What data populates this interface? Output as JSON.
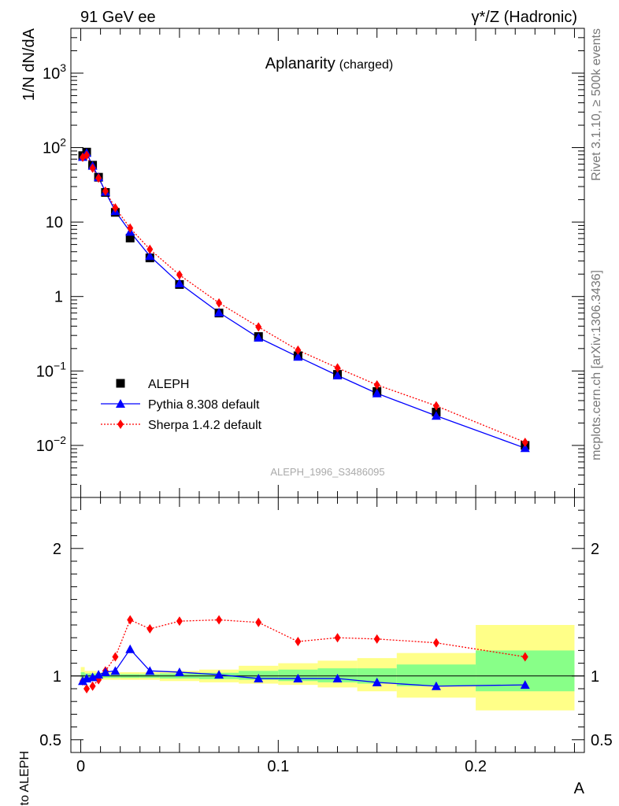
{
  "header": {
    "left": "91 GeV ee",
    "right": "γ*/Z (Hadronic)"
  },
  "side": {
    "rivet": "Rivet 3.1.10, ≥ 500k events",
    "mcplots": "mcplots.cern.ch [arXiv:1306.3436]"
  },
  "colors": {
    "data": "#000000",
    "pythia": "#0000ff",
    "sherpa": "#ff0000",
    "band_1sigma": "#88ff88",
    "band_2sigma": "#ffff88"
  },
  "chart_data": [
    {
      "type": "line",
      "title": "Aplanarity",
      "subtitle": "(charged)",
      "watermark": "ALEPH_1996_S3486095",
      "ylabel": "1/N dN/dA",
      "yscale": "log",
      "ylim": [
        0.002,
        4000
      ],
      "xlim": [
        -0.005,
        0.255
      ],
      "grid": false,
      "legend_position": "bottom-left",
      "yticks": [
        {
          "value": 0.01,
          "label": "10",
          "sup": "−2"
        },
        {
          "value": 0.1,
          "label": "10",
          "sup": "−1"
        },
        {
          "value": 1,
          "label": "1",
          "sup": ""
        },
        {
          "value": 10,
          "label": "10",
          "sup": ""
        },
        {
          "value": 100,
          "label": "10",
          "sup": "2"
        },
        {
          "value": 1000,
          "label": "10",
          "sup": "3"
        }
      ],
      "series": [
        {
          "name": "ALEPH",
          "marker": "square",
          "x": [
            0.001,
            0.003,
            0.006,
            0.009,
            0.0125,
            0.0175,
            0.025,
            0.035,
            0.05,
            0.07,
            0.09,
            0.11,
            0.13,
            0.15,
            0.18,
            0.225
          ],
          "values": [
            78,
            87,
            58,
            40,
            25,
            13.5,
            6.1,
            3.3,
            1.45,
            0.6,
            0.29,
            0.16,
            0.09,
            0.053,
            0.028,
            0.01
          ]
        },
        {
          "name": "Pythia 8.308 default",
          "marker": "triangle",
          "x": [
            0.001,
            0.003,
            0.006,
            0.009,
            0.0125,
            0.0175,
            0.025,
            0.035,
            0.05,
            0.07,
            0.09,
            0.11,
            0.13,
            0.15,
            0.18,
            0.225
          ],
          "values": [
            75,
            85,
            57,
            40,
            25.5,
            14,
            7.4,
            3.5,
            1.5,
            0.61,
            0.28,
            0.155,
            0.087,
            0.05,
            0.025,
            0.0092
          ]
        },
        {
          "name": "Sherpa 1.4.2 default",
          "marker": "diamond",
          "x": [
            0.001,
            0.003,
            0.006,
            0.009,
            0.0125,
            0.0175,
            0.025,
            0.035,
            0.05,
            0.07,
            0.09,
            0.11,
            0.13,
            0.15,
            0.18,
            0.225
          ],
          "values": [
            74,
            79,
            53,
            39,
            26,
            15.5,
            8.3,
            4.3,
            1.95,
            0.82,
            0.39,
            0.19,
            0.11,
            0.065,
            0.034,
            0.011
          ]
        }
      ]
    },
    {
      "type": "line",
      "xlabel": "A",
      "ylabel": "Ratio to ALEPH",
      "ylim": [
        0.4,
        2.4
      ],
      "xlim": [
        -0.005,
        0.255
      ],
      "reference_line": 1,
      "yticks": [
        {
          "value": 0.5,
          "label": "0.5"
        },
        {
          "value": 1,
          "label": "1"
        },
        {
          "value": 2,
          "label": "2"
        }
      ],
      "xticks": [
        {
          "value": 0,
          "label": "0"
        },
        {
          "value": 0.1,
          "label": "0.1"
        },
        {
          "value": 0.2,
          "label": "0.2"
        }
      ],
      "bands": {
        "bin_edges": [
          0,
          0.002,
          0.004,
          0.008,
          0.01,
          0.015,
          0.02,
          0.03,
          0.04,
          0.06,
          0.08,
          0.1,
          0.12,
          0.14,
          0.16,
          0.2,
          0.25
        ],
        "sigma1": [
          [
            0.97,
            1.03
          ],
          [
            0.98,
            1.02
          ],
          [
            0.98,
            1.02
          ],
          [
            0.98,
            1.02
          ],
          [
            0.985,
            1.015
          ],
          [
            0.985,
            1.015
          ],
          [
            0.985,
            1.015
          ],
          [
            0.985,
            1.015
          ],
          [
            0.98,
            1.02
          ],
          [
            0.975,
            1.025
          ],
          [
            0.97,
            1.04
          ],
          [
            0.96,
            1.05
          ],
          [
            0.95,
            1.06
          ],
          [
            0.94,
            1.06
          ],
          [
            0.92,
            1.09
          ],
          [
            0.88,
            1.2
          ]
        ],
        "sigma2": [
          [
            0.95,
            1.07
          ],
          [
            0.96,
            1.04
          ],
          [
            0.96,
            1.04
          ],
          [
            0.97,
            1.03
          ],
          [
            0.97,
            1.03
          ],
          [
            0.97,
            1.03
          ],
          [
            0.97,
            1.03
          ],
          [
            0.97,
            1.03
          ],
          [
            0.96,
            1.04
          ],
          [
            0.95,
            1.05
          ],
          [
            0.94,
            1.08
          ],
          [
            0.93,
            1.1
          ],
          [
            0.91,
            1.12
          ],
          [
            0.88,
            1.14
          ],
          [
            0.83,
            1.18
          ],
          [
            0.73,
            1.4
          ]
        ]
      },
      "series": [
        {
          "name": "Pythia 8.308 default",
          "marker": "triangle",
          "x": [
            0.001,
            0.003,
            0.006,
            0.009,
            0.0125,
            0.0175,
            0.025,
            0.035,
            0.05,
            0.07,
            0.09,
            0.11,
            0.13,
            0.15,
            0.18,
            0.225
          ],
          "values": [
            0.96,
            0.98,
            0.99,
            1.01,
            1.03,
            1.04,
            1.21,
            1.04,
            1.03,
            1.01,
            0.98,
            0.98,
            0.98,
            0.95,
            0.92,
            0.93
          ]
        },
        {
          "name": "Sherpa 1.4.2 default",
          "marker": "diamond",
          "x": [
            0.001,
            0.003,
            0.006,
            0.009,
            0.0125,
            0.0175,
            0.025,
            0.035,
            0.05,
            0.07,
            0.09,
            0.11,
            0.13,
            0.15,
            0.18,
            0.225
          ],
          "values": [
            0.96,
            0.9,
            0.92,
            0.97,
            1.04,
            1.15,
            1.44,
            1.37,
            1.43,
            1.44,
            1.42,
            1.27,
            1.3,
            1.29,
            1.26,
            1.15
          ]
        }
      ]
    }
  ]
}
